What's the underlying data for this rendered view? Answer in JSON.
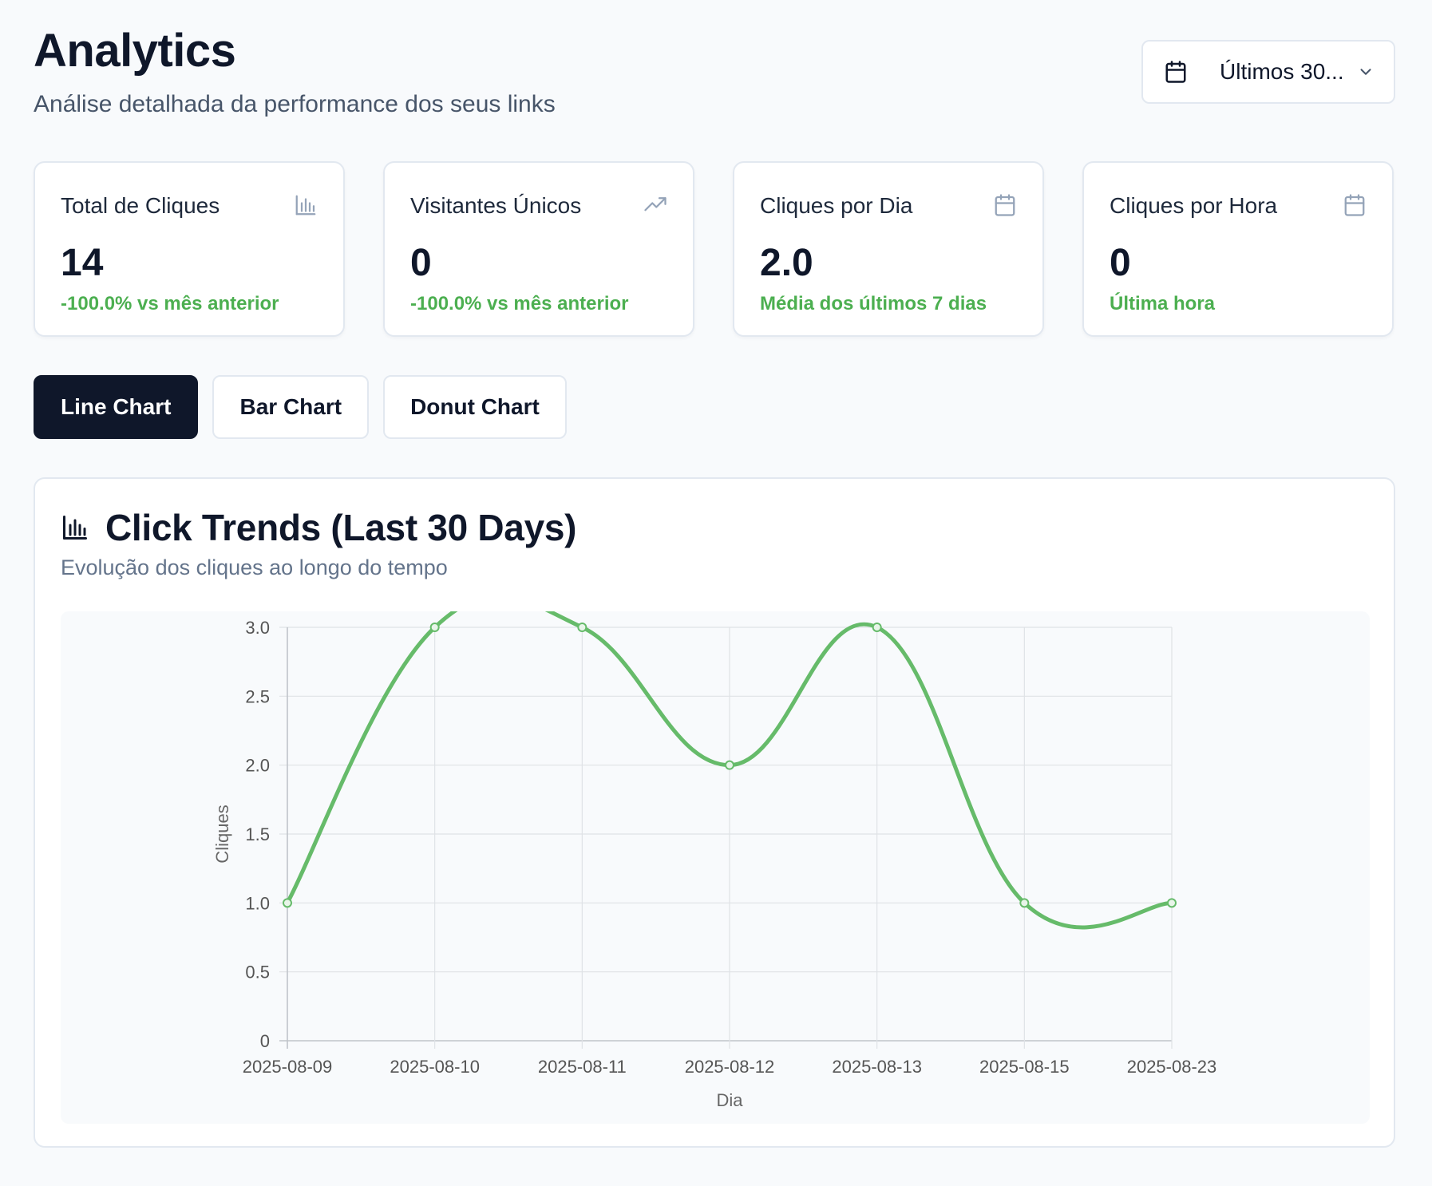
{
  "header": {
    "title": "Analytics",
    "subtitle": "Análise detalhada da performance dos seus links",
    "date_range": {
      "label": "Últimos 30...",
      "icon": "calendar-icon",
      "chevron": "chevron-down-icon"
    }
  },
  "stats": [
    {
      "label": "Total de Cliques",
      "value": "14",
      "note": "-100.0% vs mês anterior",
      "icon": "bar-chart-icon"
    },
    {
      "label": "Visitantes Únicos",
      "value": "0",
      "note": "-100.0% vs mês anterior",
      "icon": "trending-up-icon"
    },
    {
      "label": "Cliques por Dia",
      "value": "2.0",
      "note": "Média dos últimos 7 dias",
      "icon": "calendar-icon"
    },
    {
      "label": "Cliques por Hora",
      "value": "0",
      "note": "Última hora",
      "icon": "calendar-icon"
    }
  ],
  "tabs": [
    {
      "label": "Line Chart",
      "active": true
    },
    {
      "label": "Bar Chart",
      "active": false
    },
    {
      "label": "Donut Chart",
      "active": false
    }
  ],
  "chart_card": {
    "title": "Click Trends (Last 30 Days)",
    "subtitle": "Evolução dos cliques ao longo do tempo",
    "icon": "bar-chart-icon"
  },
  "colors": {
    "accent_green": "#4caf50",
    "line_green": "#66bb6a",
    "dark": "#0f172a"
  },
  "chart_data": {
    "type": "line",
    "x": [
      "2025-08-09",
      "2025-08-10",
      "2025-08-11",
      "2025-08-12",
      "2025-08-13",
      "2025-08-15",
      "2025-08-23"
    ],
    "series": [
      {
        "values": [
          1,
          3,
          3,
          2,
          3,
          1,
          1
        ]
      }
    ],
    "xlabel": "Dia",
    "ylabel": "Cliques",
    "ylim": [
      0,
      3
    ],
    "yticks": [
      "0",
      "0.5",
      "1.0",
      "1.5",
      "2.0",
      "2.5",
      "3.0"
    ],
    "grid": true,
    "smooth": true
  }
}
